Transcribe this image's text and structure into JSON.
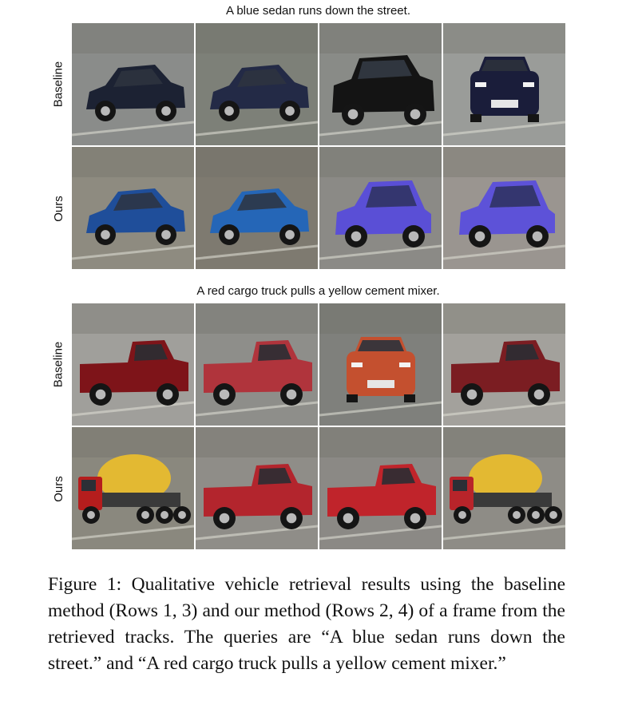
{
  "figure": {
    "query1": "A blue sedan runs down the street.",
    "query2": "A red cargo truck pulls a yellow cement mixer.",
    "label_baseline": "Baseline",
    "label_ours": "Ours",
    "caption": "Figure 1: Qualitative vehicle retrieval results using the baseline method (Rows 1, 3) and our method (Rows 2, 4) of a frame from the retrieved tracks. The queries are “A blue sedan runs down the street.” and “A red cargo truck pulls a yellow cement mixer.”"
  },
  "rows": [
    {
      "method": "Baseline",
      "query": "A blue sedan runs down the street.",
      "cells": [
        {
          "kind": "sedan",
          "body": "#1c2233",
          "bg": "#8a8c8a"
        },
        {
          "kind": "sedan",
          "body": "#232a46",
          "bg": "#7d8078"
        },
        {
          "kind": "suv",
          "body": "#141414",
          "bg": "#898b87"
        },
        {
          "kind": "front",
          "body": "#1a1d3a",
          "bg": "#9a9c99"
        }
      ]
    },
    {
      "method": "Ours",
      "query": "A blue sedan runs down the street.",
      "cells": [
        {
          "kind": "sedan",
          "body": "#1f4e9a",
          "bg": "#8e8b80"
        },
        {
          "kind": "sedan",
          "body": "#2566b7",
          "bg": "#7e7a70"
        },
        {
          "kind": "hatch",
          "body": "#5a4fd6",
          "bg": "#8b8a86"
        },
        {
          "kind": "hatch",
          "body": "#5d52d8",
          "bg": "#9a9590"
        }
      ]
    },
    {
      "method": "Baseline",
      "query": "A red cargo truck pulls a yellow cement mixer.",
      "cells": [
        {
          "kind": "pickup",
          "body": "#7e1419",
          "bg": "#a09f9b"
        },
        {
          "kind": "pickup",
          "body": "#b0343c",
          "bg": "#8e8e8a"
        },
        {
          "kind": "front",
          "body": "#c4502f",
          "bg": "#7f807c"
        },
        {
          "kind": "pickup",
          "body": "#7b1d22",
          "bg": "#a3a19c"
        }
      ]
    },
    {
      "method": "Ours",
      "query": "A red cargo truck pulls a yellow cement mixer.",
      "cells": [
        {
          "kind": "mixer",
          "body": "#b51d1d",
          "bg": "#8a887e"
        },
        {
          "kind": "pickup",
          "body": "#b3252d",
          "bg": "#8f8d88"
        },
        {
          "kind": "pickup",
          "body": "#c0242b",
          "bg": "#8b8985"
        },
        {
          "kind": "mixer",
          "body": "#b8242a",
          "bg": "#8e8c86"
        }
      ]
    }
  ]
}
